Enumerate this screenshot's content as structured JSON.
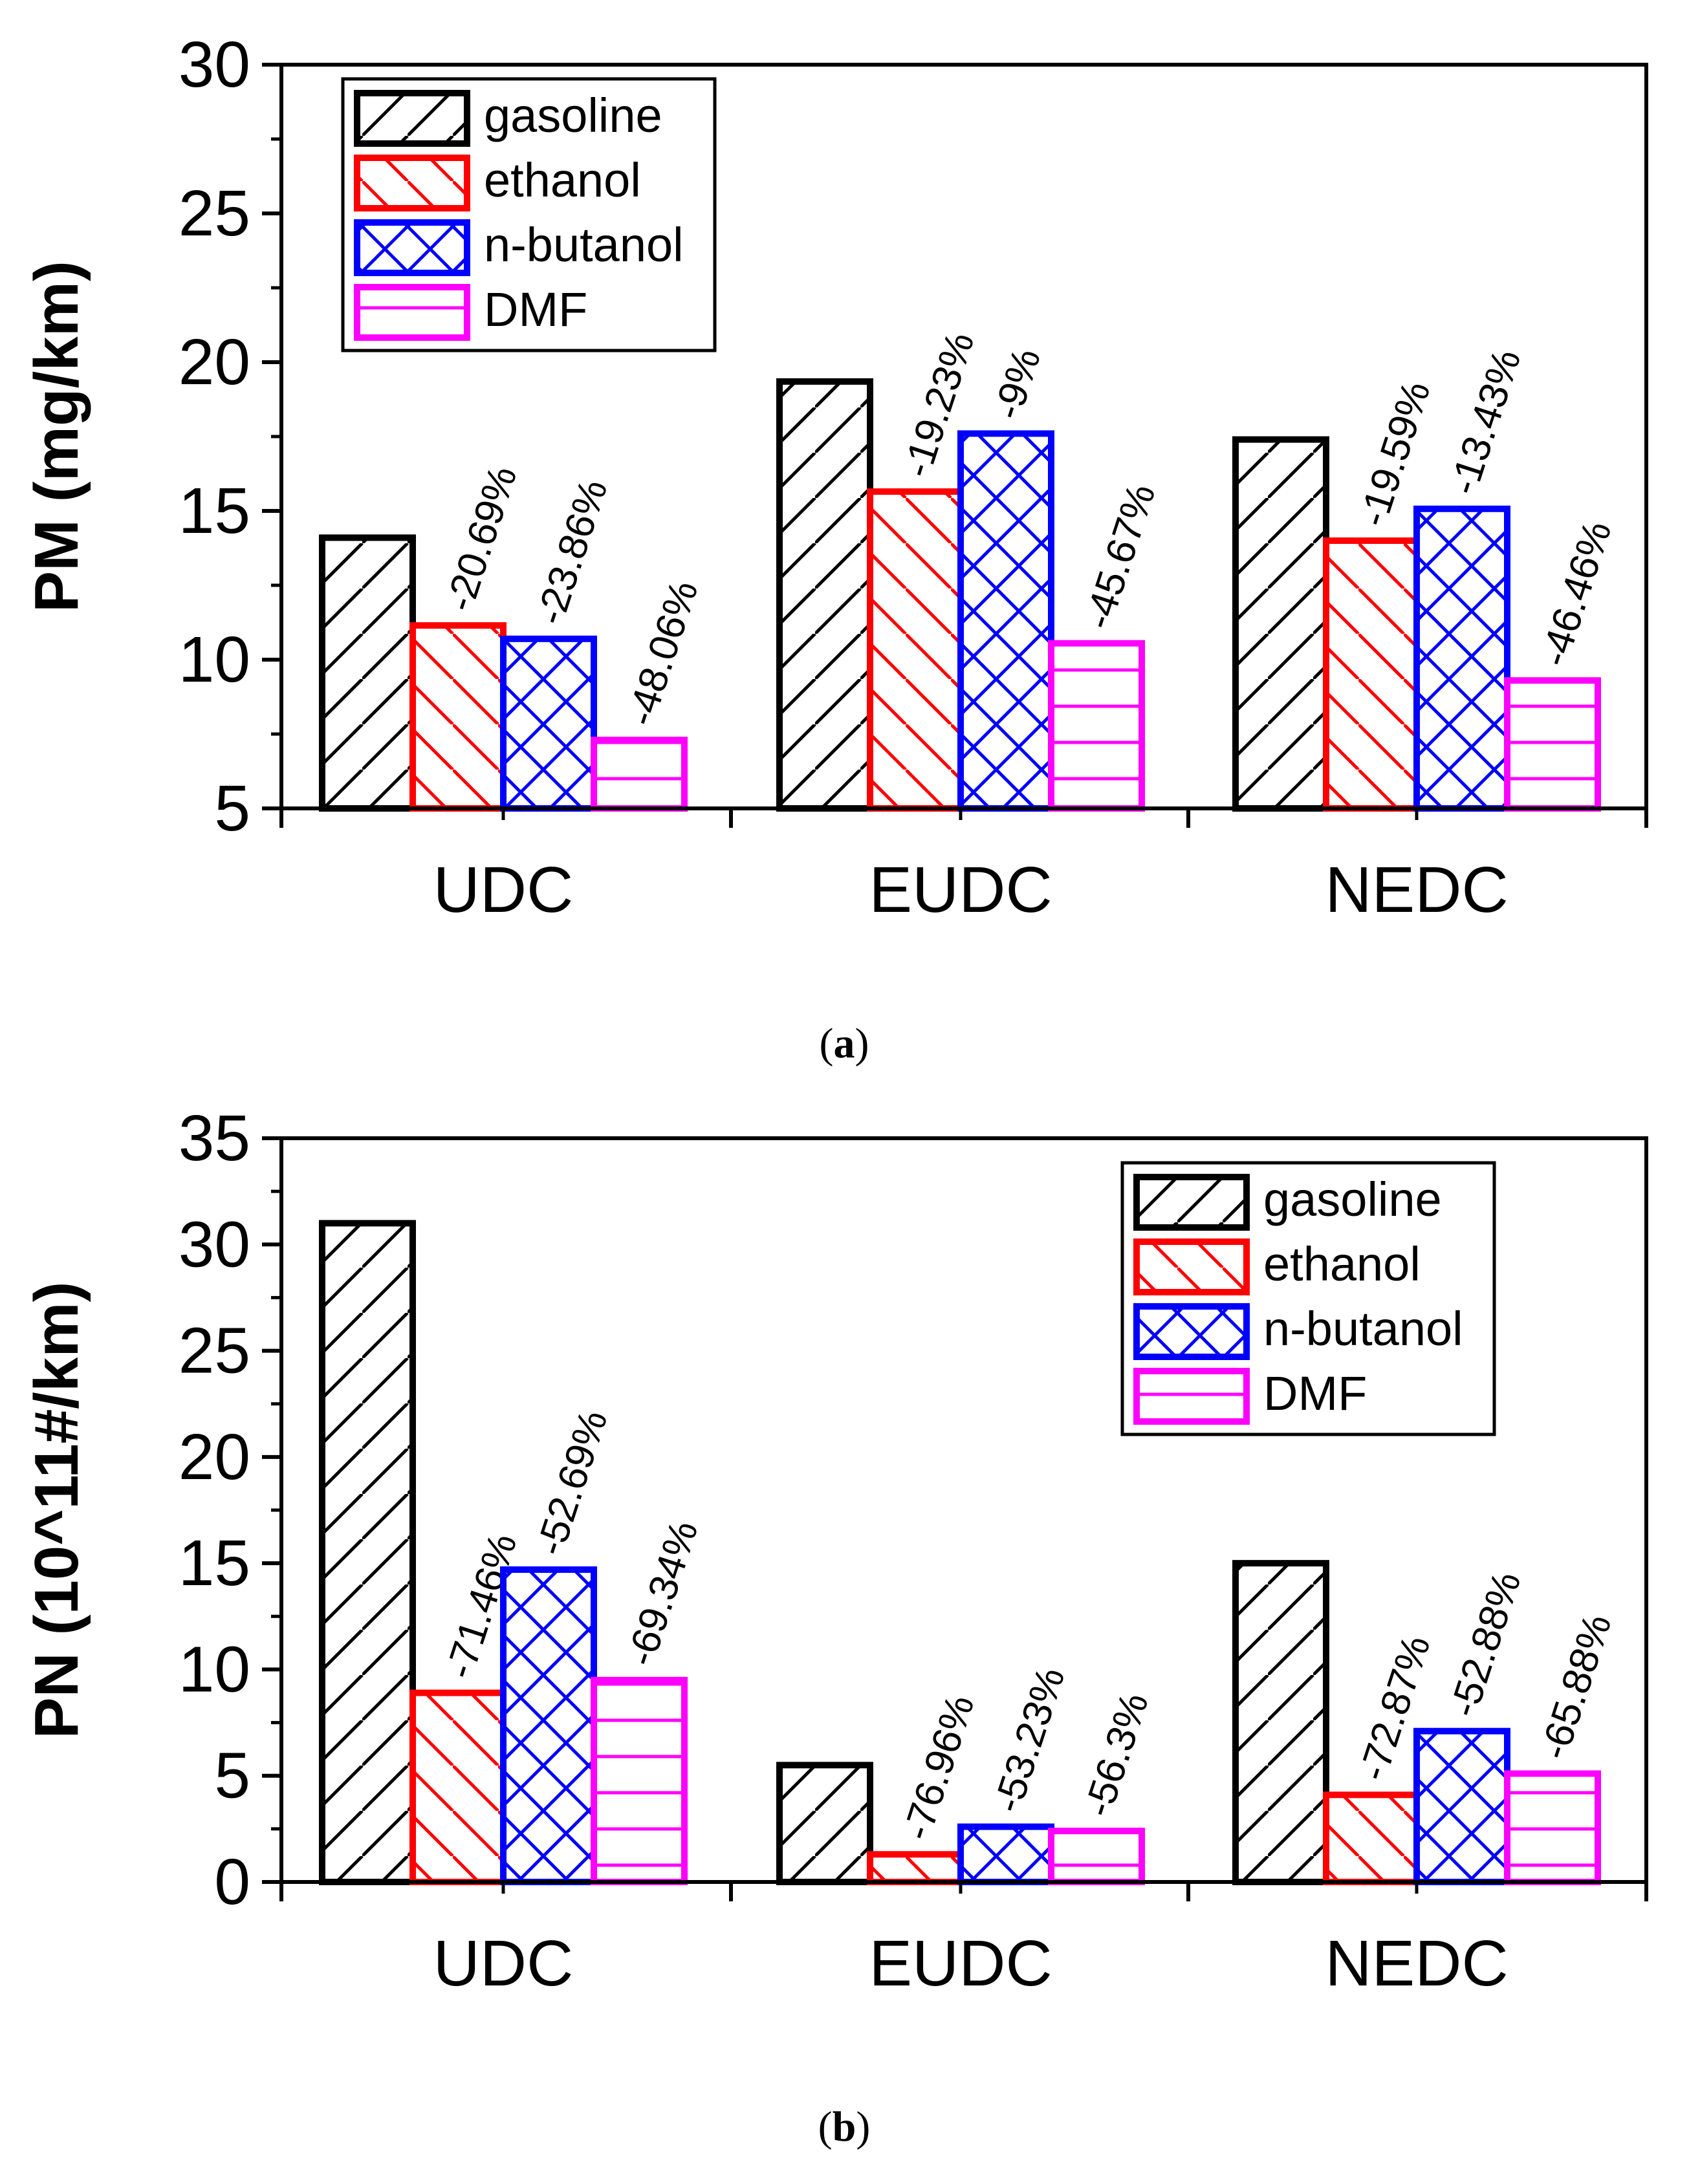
{
  "colors": {
    "gasoline": "#000000",
    "ethanol": "#ff0000",
    "n-butanol": "#0000ff",
    "DMF": "#ff00ff",
    "axis": "#000000",
    "background": "#ffffff"
  },
  "chart_data": [
    {
      "type": "bar",
      "panel": "(a)",
      "caption_letter": "a",
      "title": "",
      "xlabel": "",
      "ylabel": "PM (mg/km)",
      "ylim": [
        5,
        30
      ],
      "yticks": [
        "5",
        "10",
        "15",
        "20",
        "25",
        "30"
      ],
      "grid": false,
      "legend_position": "top-left",
      "categories": [
        "UDC",
        "EUDC",
        "NEDC"
      ],
      "series": [
        {
          "name": "gasoline",
          "pattern": "diag-up",
          "values": [
            14.1,
            19.35,
            17.4
          ],
          "labels": [
            "",
            "",
            ""
          ]
        },
        {
          "name": "ethanol",
          "pattern": "diag-down",
          "values": [
            11.15,
            15.65,
            14.0
          ],
          "labels": [
            "-20.69%",
            "-19.23%",
            "-19.59%"
          ]
        },
        {
          "name": "n-butanol",
          "pattern": "cross",
          "values": [
            10.7,
            17.6,
            15.07
          ],
          "labels": [
            "-23.86%",
            "-9%",
            "-13.43%"
          ]
        },
        {
          "name": "DMF",
          "pattern": "horizontal",
          "values": [
            7.3,
            10.55,
            9.3
          ],
          "labels": [
            "-48.06%",
            "-45.67%",
            "-46.46%"
          ]
        }
      ]
    },
    {
      "type": "bar",
      "panel": "(b)",
      "caption_letter": "b",
      "title": "",
      "xlabel": "",
      "ylabel": "PN (10^11#/km)",
      "ylim": [
        0,
        35
      ],
      "yticks": [
        "0",
        "5",
        "10",
        "15",
        "20",
        "25",
        "30",
        "35"
      ],
      "grid": false,
      "legend_position": "top-right",
      "categories": [
        "UDC",
        "EUDC",
        "NEDC"
      ],
      "series": [
        {
          "name": "gasoline",
          "pattern": "diag-up",
          "values": [
            31.0,
            5.5,
            15.0
          ],
          "labels": [
            "",
            "",
            ""
          ]
        },
        {
          "name": "ethanol",
          "pattern": "diag-down",
          "values": [
            8.9,
            1.3,
            4.1
          ],
          "labels": [
            "-71.46%",
            "-76.96%",
            "-72.87%"
          ]
        },
        {
          "name": "n-butanol",
          "pattern": "cross",
          "values": [
            14.7,
            2.6,
            7.1
          ],
          "labels": [
            "-52.69%",
            "-53.23%",
            "-52.88%"
          ]
        },
        {
          "name": "DMF",
          "pattern": "horizontal",
          "values": [
            9.5,
            2.4,
            5.1
          ],
          "labels": [
            "-69.34%",
            "-56.3%",
            "-65.88%"
          ]
        }
      ]
    }
  ]
}
